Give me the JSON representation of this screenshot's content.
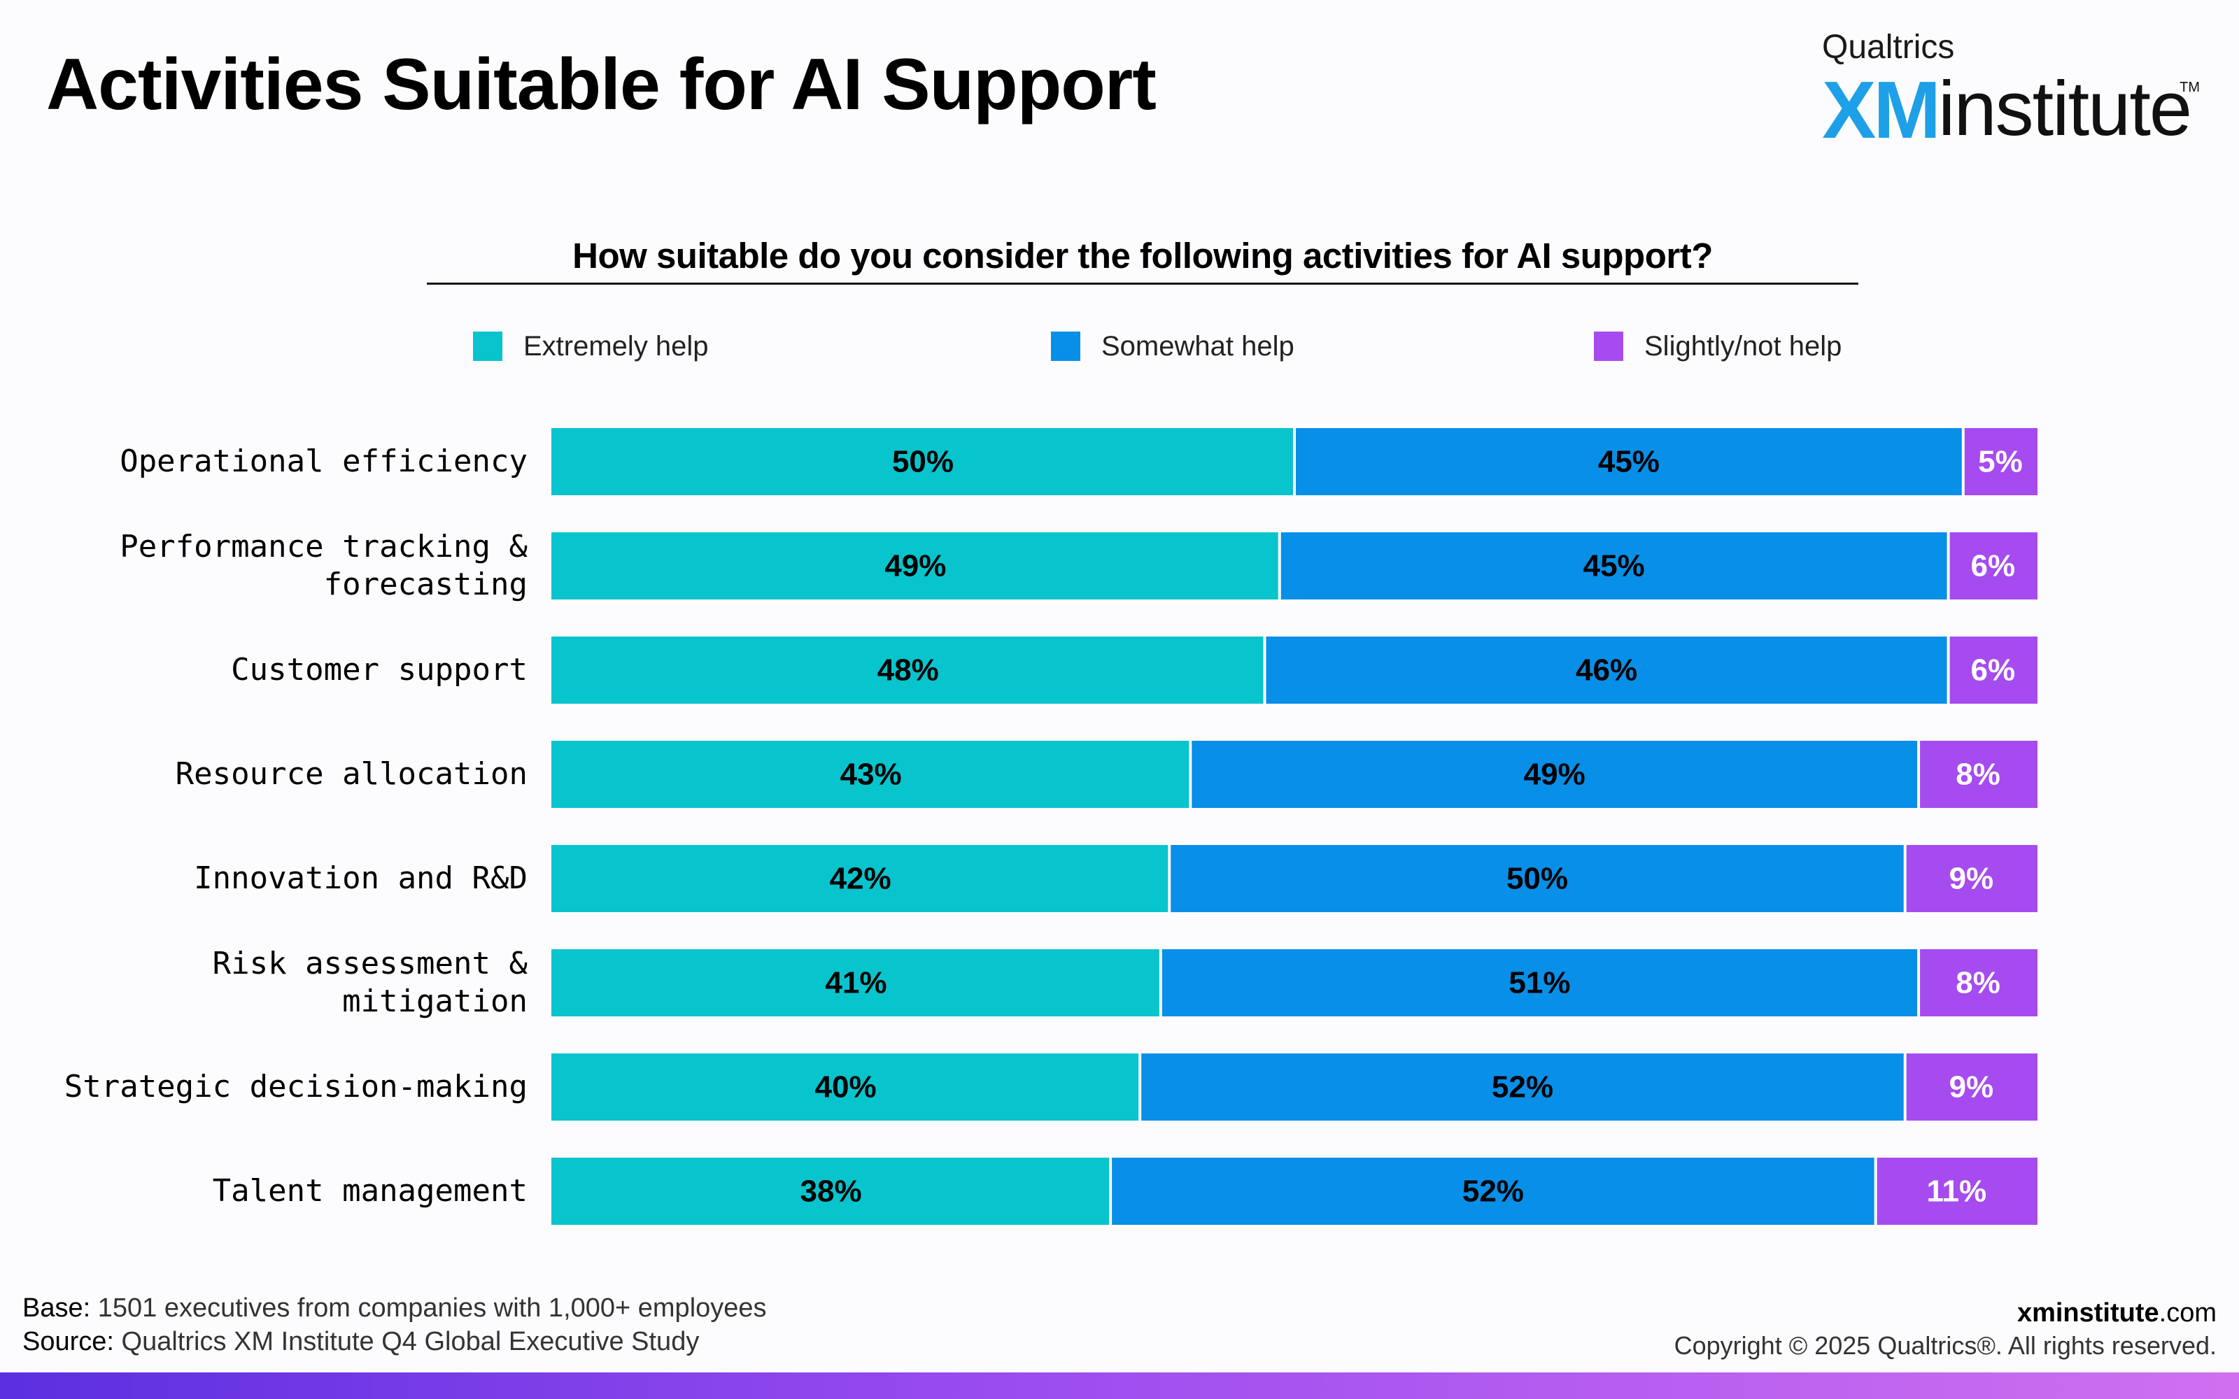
{
  "page": {
    "title": "Activities Suitable for AI Support",
    "logo": {
      "top": "Qualtrics",
      "xm": "XM",
      "rest": "institute",
      "tm": "TM"
    },
    "footer": {
      "base_label": "Base:",
      "base_text": " 1501 executives from companies with 1,000+ employees",
      "source_label": "Source:",
      "source_text": " Qualtrics XM Institute Q4 Global Executive Study",
      "site_bold": "xminstitute",
      "site_rest": ".com",
      "copyright": "Copyright © 2025 Qualtrics®. All rights reserved."
    }
  },
  "chart_data": {
    "type": "bar",
    "orientation": "horizontal-stacked-100",
    "title": "How suitable do you consider the following activities for AI support?",
    "categories": [
      "Operational efficiency",
      "Performance tracking &\nforecasting",
      "Customer support",
      "Resource allocation",
      "Innovation and R&D",
      "Risk assessment &\nmitigation",
      "Strategic decision-making",
      "Talent management"
    ],
    "series": [
      {
        "name": "Extremely help",
        "color": "#07c4cd",
        "label_color": "#000000",
        "values": [
          50,
          49,
          48,
          43,
          42,
          41,
          40,
          38
        ]
      },
      {
        "name": "Somewhat help",
        "color": "#088fe8",
        "label_color": "#000000",
        "values": [
          45,
          45,
          46,
          49,
          50,
          51,
          52,
          52
        ]
      },
      {
        "name": "Slightly/not help",
        "color": "#a54bef",
        "label_color": "#ffffff",
        "values": [
          5,
          6,
          6,
          8,
          9,
          8,
          9,
          11
        ]
      }
    ],
    "value_suffix": "%",
    "legend": "top",
    "grid": false
  }
}
